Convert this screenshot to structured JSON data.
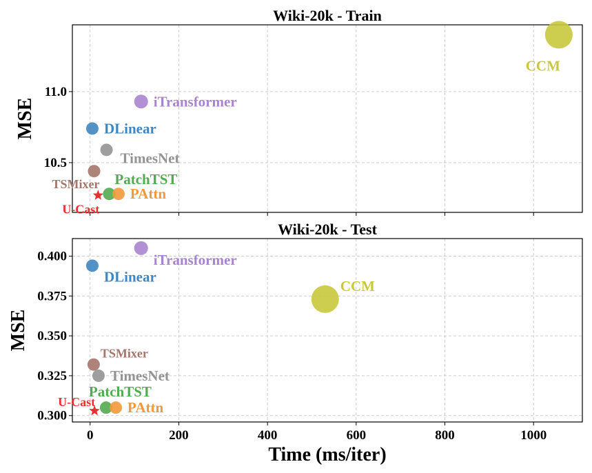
{
  "chart_data": [
    {
      "type": "scatter",
      "title": "Wiki-20k - Train",
      "xlabel": "",
      "ylabel": "MSE",
      "xlim": [
        -40,
        1110
      ],
      "ylim": [
        10.15,
        11.47
      ],
      "yticks": [
        "10.5",
        "11.0"
      ],
      "ytick_values": [
        10.5,
        11.0
      ],
      "xticks": [
        0,
        200,
        400,
        600,
        800,
        1000
      ],
      "grid": true,
      "points": [
        {
          "name": "CCM",
          "x": 1057,
          "y": 11.4,
          "size": 20,
          "color": "#c8c83c",
          "label_pos": "below-left"
        },
        {
          "name": "iTransformer",
          "x": 115,
          "y": 10.93,
          "size": 10,
          "color": "#a884cf",
          "label_pos": "right"
        },
        {
          "name": "DLinear",
          "x": 5,
          "y": 10.74,
          "size": 9,
          "color": "#3f86c0",
          "label_pos": "right"
        },
        {
          "name": "TimesNet",
          "x": 37,
          "y": 10.59,
          "size": 9,
          "color": "#939393",
          "label_pos": "below-right"
        },
        {
          "name": "TSMixer",
          "x": 9,
          "y": 10.44,
          "size": 9,
          "color": "#a5756a",
          "label_pos": "below-left"
        },
        {
          "name": "PatchTST",
          "x": 43,
          "y": 10.28,
          "size": 9,
          "color": "#52ab52",
          "label_pos": "above-right"
        },
        {
          "name": "PAttn",
          "x": 64,
          "y": 10.28,
          "size": 9,
          "color": "#f3993a",
          "label_pos": "right"
        },
        {
          "name": "U-Cast",
          "x": 18,
          "y": 10.27,
          "size": 8,
          "color": "#e8302f",
          "marker": "star",
          "label_pos": "below-left"
        }
      ]
    },
    {
      "type": "scatter",
      "title": "Wiki-20k - Test",
      "xlabel": "Time (ms/iter)",
      "ylabel": "MSE",
      "xlim": [
        -40,
        1110
      ],
      "ylim": [
        0.296,
        0.411
      ],
      "yticks": [
        "0.300",
        "0.325",
        "0.350",
        "0.375",
        "0.400"
      ],
      "ytick_values": [
        0.3,
        0.325,
        0.35,
        0.375,
        0.4
      ],
      "xticks": [
        0,
        200,
        400,
        600,
        800,
        1000
      ],
      "grid": true,
      "points": [
        {
          "name": "iTransformer",
          "x": 115,
          "y": 0.405,
          "size": 10,
          "color": "#a884cf",
          "label_pos": "below-right"
        },
        {
          "name": "DLinear",
          "x": 5,
          "y": 0.394,
          "size": 9,
          "color": "#3f86c0",
          "label_pos": "below-right"
        },
        {
          "name": "CCM",
          "x": 530,
          "y": 0.373,
          "size": 20,
          "color": "#c8c83c",
          "label_pos": "above-right"
        },
        {
          "name": "TSMixer",
          "x": 8,
          "y": 0.332,
          "size": 9,
          "color": "#a5756a",
          "label_pos": "above-right"
        },
        {
          "name": "TimesNet",
          "x": 19,
          "y": 0.325,
          "size": 9,
          "color": "#939393",
          "label_pos": "right"
        },
        {
          "name": "PatchTST",
          "x": 36,
          "y": 0.305,
          "size": 9,
          "color": "#52ab52",
          "label_pos": "above-left"
        },
        {
          "name": "PAttn",
          "x": 58,
          "y": 0.305,
          "size": 9,
          "color": "#f3993a",
          "label_pos": "right"
        },
        {
          "name": "U-Cast",
          "x": 10,
          "y": 0.303,
          "size": 8,
          "color": "#e8302f",
          "marker": "star",
          "label_pos": "above-left"
        }
      ]
    }
  ]
}
